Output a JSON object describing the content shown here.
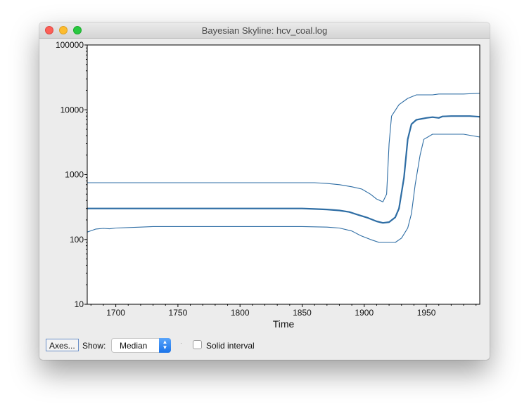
{
  "window": {
    "title": "Bayesian Skyline: hcv_coal.log"
  },
  "controls": {
    "axes_button": "Axes...",
    "show_label": "Show:",
    "show_select": {
      "value": "Median"
    },
    "solid_interval": {
      "label": "Solid interval",
      "checked": false
    }
  },
  "chart_data": {
    "type": "line",
    "xlabel": "Time",
    "ylabel": "",
    "yscale": "log",
    "xlim": [
      1677,
      1993
    ],
    "ylim": [
      10,
      100000
    ],
    "xticks": [
      1700,
      1750,
      1800,
      1850,
      1900,
      1950
    ],
    "yticks": [
      10,
      100,
      1000,
      10000,
      100000
    ],
    "line_color": "#2e6da4",
    "series": [
      {
        "role": "upper",
        "points": [
          [
            1677,
            750
          ],
          [
            1860,
            750
          ],
          [
            1870,
            730
          ],
          [
            1880,
            700
          ],
          [
            1890,
            650
          ],
          [
            1898,
            600
          ],
          [
            1905,
            500
          ],
          [
            1910,
            420
          ],
          [
            1915,
            380
          ],
          [
            1918,
            500
          ],
          [
            1920,
            3000
          ],
          [
            1922,
            8000
          ],
          [
            1928,
            12000
          ],
          [
            1935,
            15000
          ],
          [
            1942,
            17000
          ],
          [
            1955,
            17000
          ],
          [
            1960,
            17500
          ],
          [
            1980,
            17500
          ],
          [
            1993,
            18000
          ]
        ]
      },
      {
        "role": "median",
        "points": [
          [
            1677,
            300
          ],
          [
            1850,
            300
          ],
          [
            1860,
            295
          ],
          [
            1870,
            290
          ],
          [
            1880,
            280
          ],
          [
            1888,
            265
          ],
          [
            1895,
            240
          ],
          [
            1903,
            215
          ],
          [
            1910,
            190
          ],
          [
            1915,
            180
          ],
          [
            1920,
            185
          ],
          [
            1925,
            220
          ],
          [
            1928,
            300
          ],
          [
            1932,
            900
          ],
          [
            1935,
            3500
          ],
          [
            1938,
            6000
          ],
          [
            1942,
            7000
          ],
          [
            1950,
            7500
          ],
          [
            1955,
            7700
          ],
          [
            1960,
            7500
          ],
          [
            1963,
            7900
          ],
          [
            1970,
            8000
          ],
          [
            1985,
            8000
          ],
          [
            1993,
            7800
          ]
        ]
      },
      {
        "role": "lower",
        "points": [
          [
            1677,
            130
          ],
          [
            1684,
            145
          ],
          [
            1690,
            148
          ],
          [
            1695,
            146
          ],
          [
            1700,
            150
          ],
          [
            1720,
            155
          ],
          [
            1730,
            158
          ],
          [
            1850,
            158
          ],
          [
            1870,
            155
          ],
          [
            1880,
            150
          ],
          [
            1890,
            135
          ],
          [
            1897,
            115
          ],
          [
            1905,
            100
          ],
          [
            1912,
            90
          ],
          [
            1925,
            90
          ],
          [
            1930,
            105
          ],
          [
            1935,
            150
          ],
          [
            1938,
            250
          ],
          [
            1941,
            700
          ],
          [
            1945,
            2000
          ],
          [
            1948,
            3500
          ],
          [
            1955,
            4200
          ],
          [
            1980,
            4200
          ],
          [
            1993,
            3800
          ]
        ]
      }
    ]
  }
}
